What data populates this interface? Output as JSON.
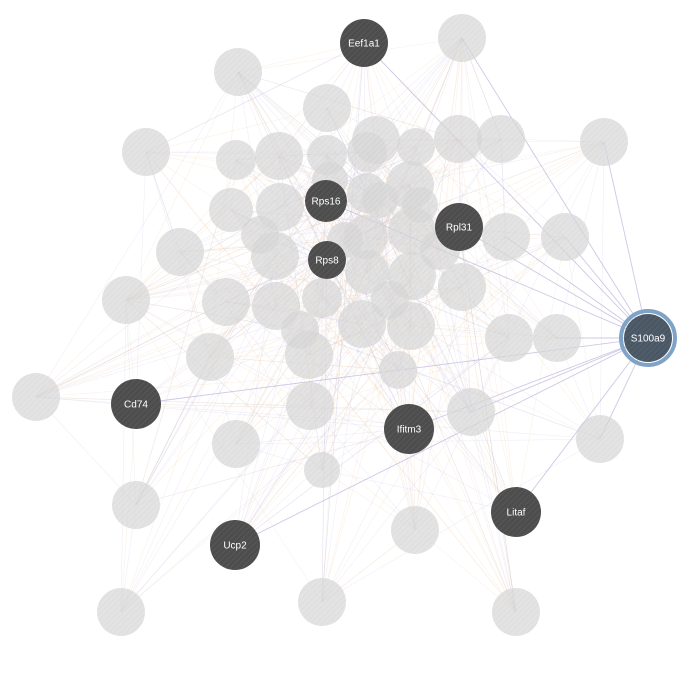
{
  "colors": {
    "background": "#ffffff",
    "highlighted_node": "#4d4d4d",
    "faded_node": "#d6d6d6",
    "selected_node": "#4a5866",
    "selected_ring": "#7fa3c6",
    "edge_interaction": "#b8b0dc",
    "edge_coexpression": "#f3d6b8",
    "label_text": "#ffffff"
  },
  "network": {
    "selected_gene": "S100a9",
    "highlighted_genes": [
      "Eef1a1",
      "Rps16",
      "Rpl31",
      "Rps8",
      "Cd74",
      "Ifitm3",
      "Litaf",
      "Ucp2"
    ],
    "faded_node_count": 56,
    "nodes": [
      {
        "id": "Eef1a1",
        "label": "Eef1a1",
        "state": "highlighted"
      },
      {
        "id": "Rps16",
        "label": "Rps16",
        "state": "highlighted"
      },
      {
        "id": "Rpl31",
        "label": "Rpl31",
        "state": "highlighted"
      },
      {
        "id": "Rps8",
        "label": "Rps8",
        "state": "highlighted"
      },
      {
        "id": "S100a9",
        "label": "S100a9",
        "state": "selected"
      },
      {
        "id": "Cd74",
        "label": "Cd74",
        "state": "highlighted"
      },
      {
        "id": "Ifitm3",
        "label": "Ifitm3",
        "state": "highlighted"
      },
      {
        "id": "Litaf",
        "label": "Litaf",
        "state": "highlighted"
      },
      {
        "id": "Ucp2",
        "label": "Ucp2",
        "state": "highlighted"
      }
    ]
  }
}
